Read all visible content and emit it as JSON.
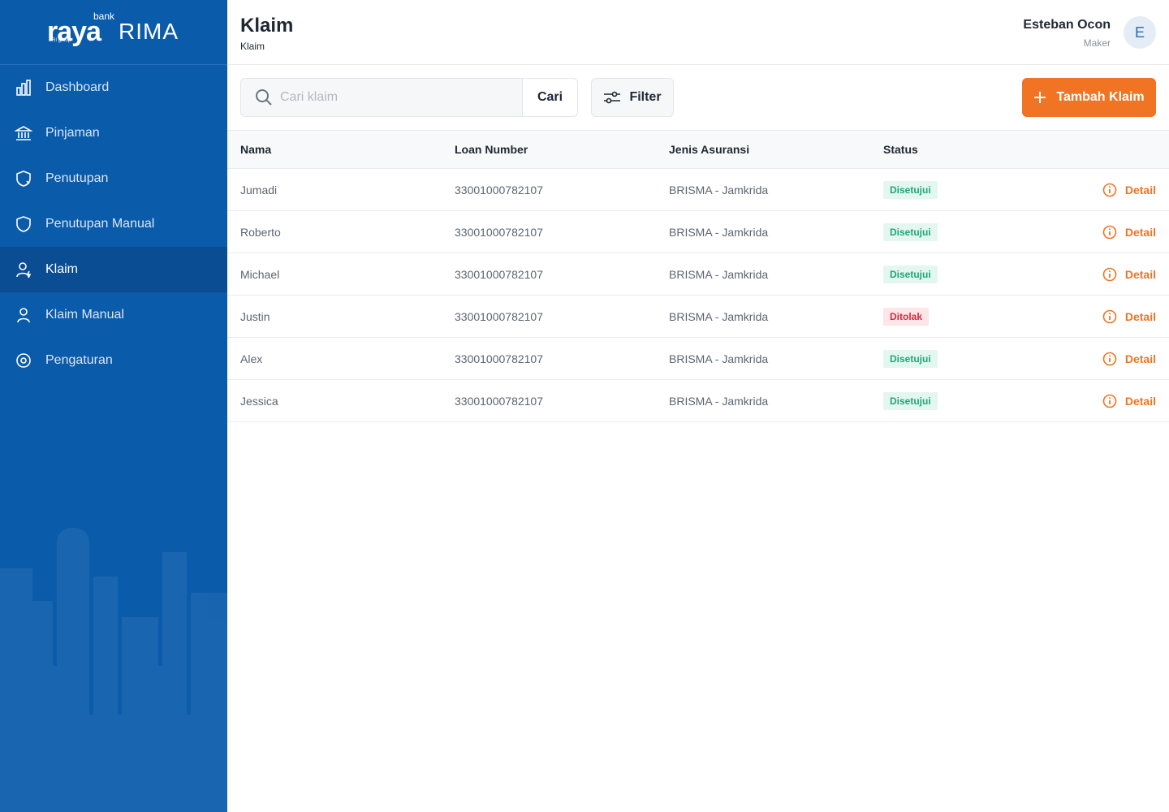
{
  "logo": {
    "brand": "raya",
    "prefix": "bank",
    "suffix": "RIMA",
    "group": "BRI group"
  },
  "nav": [
    {
      "label": "Dashboard",
      "active": false
    },
    {
      "label": "Pinjaman",
      "active": false
    },
    {
      "label": "Penutupan",
      "active": false
    },
    {
      "label": "Penutupan Manual",
      "active": false
    },
    {
      "label": "Klaim",
      "active": true
    },
    {
      "label": "Klaim Manual",
      "active": false
    },
    {
      "label": "Pengaturan",
      "active": false
    }
  ],
  "header": {
    "title": "Klaim",
    "breadcrumb": "Klaim",
    "user_name": "Esteban Ocon",
    "user_role": "Maker",
    "avatar": "E"
  },
  "toolbar": {
    "search_placeholder": "Cari klaim",
    "search_button": "Cari",
    "filter_button": "Filter",
    "add_button": "Tambah Klaim"
  },
  "table": {
    "columns": [
      "Nama",
      "Loan Number",
      "Jenis Asuransi",
      "Status"
    ],
    "rows": [
      {
        "name": "Jumadi",
        "loan_number": "33001000782107",
        "insurance": "BRISMA - Jamkrida",
        "status": "Disetujui",
        "status_color": "#1fa67a",
        "status_background": "#e3f6ef",
        "action": "Detail"
      },
      {
        "name": "Roberto",
        "loan_number": "33001000782107",
        "insurance": "BRISMA - Jamkrida",
        "status": "Disetujui",
        "status_color": "#1fa67a",
        "status_background": "#e3f6ef",
        "action": "Detail"
      },
      {
        "name": "Michael",
        "loan_number": "33001000782107",
        "insurance": "BRISMA - Jamkrida",
        "status": "Disetujui",
        "status_color": "#1fa67a",
        "status_background": "#e3f6ef",
        "action": "Detail"
      },
      {
        "name": "Justin",
        "loan_number": "33001000782107",
        "insurance": "BRISMA - Jamkrida",
        "status": "Ditolak",
        "status_color": "#d12b3b",
        "status_background": "#fde5e8",
        "action": "Detail"
      },
      {
        "name": "Alex",
        "loan_number": "33001000782107",
        "insurance": "BRISMA - Jamkrida",
        "status": "Disetujui",
        "status_color": "#1fa67a",
        "status_background": "#e3f6ef",
        "action": "Detail"
      },
      {
        "name": "Jessica",
        "loan_number": "33001000782107",
        "insurance": "BRISMA - Jamkrida",
        "status": "Disetujui",
        "status_color": "#1fa67a",
        "status_background": "#e3f6ef",
        "action": "Detail"
      }
    ]
  }
}
